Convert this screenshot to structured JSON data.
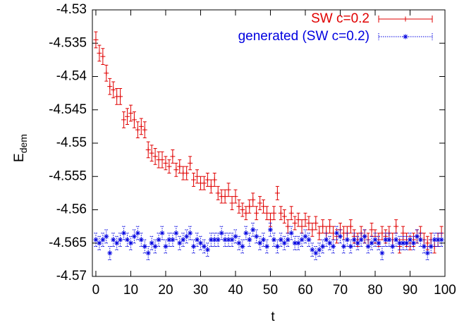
{
  "chart_data": {
    "type": "errorbar_scatter",
    "xlabel": "t",
    "ylabel": "E",
    "ylabel_subscript": "dem",
    "xlim": [
      -1,
      100
    ],
    "ylim": [
      -4.57,
      -4.53
    ],
    "xticks": [
      0,
      10,
      20,
      30,
      40,
      50,
      60,
      70,
      80,
      90,
      100
    ],
    "yticks": [
      -4.57,
      -4.565,
      -4.56,
      -4.555,
      -4.55,
      -4.545,
      -4.54,
      -4.535,
      -4.53
    ],
    "legend": "top-right",
    "x": [
      0,
      1,
      2,
      3,
      4,
      5,
      6,
      7,
      8,
      9,
      10,
      11,
      12,
      13,
      14,
      15,
      16,
      17,
      18,
      19,
      20,
      21,
      22,
      23,
      24,
      25,
      26,
      27,
      28,
      29,
      30,
      31,
      32,
      33,
      34,
      35,
      36,
      37,
      38,
      39,
      40,
      41,
      42,
      43,
      44,
      45,
      46,
      47,
      48,
      49,
      50,
      51,
      52,
      53,
      54,
      55,
      56,
      57,
      58,
      59,
      60,
      61,
      62,
      63,
      64,
      65,
      66,
      67,
      68,
      69,
      70,
      71,
      72,
      73,
      74,
      75,
      76,
      77,
      78,
      79,
      80,
      81,
      82,
      83,
      84,
      85,
      86,
      87,
      88,
      89,
      90,
      91,
      92,
      93,
      94,
      95,
      96,
      97,
      98,
      99
    ],
    "series": [
      {
        "name": "SW c=0.2",
        "color": "#e00000",
        "marker": "plus",
        "dotted": false,
        "values": [
          -4.5345,
          -4.5365,
          -4.537,
          -4.5395,
          -4.5415,
          -4.542,
          -4.543,
          -4.543,
          -4.5465,
          -4.546,
          -4.5455,
          -4.5465,
          -4.548,
          -4.5475,
          -4.548,
          -4.551,
          -4.5515,
          -4.552,
          -4.5525,
          -4.5525,
          -4.553,
          -4.5535,
          -4.552,
          -4.554,
          -4.5535,
          -4.5545,
          -4.5545,
          -4.553,
          -4.5555,
          -4.555,
          -4.556,
          -4.556,
          -4.5555,
          -4.5565,
          -4.5555,
          -4.5575,
          -4.558,
          -4.558,
          -4.557,
          -4.559,
          -4.558,
          -4.5595,
          -4.56,
          -4.5605,
          -4.5595,
          -4.5585,
          -4.5605,
          -4.559,
          -4.5595,
          -4.5605,
          -4.5615,
          -4.5605,
          -4.5575,
          -4.5605,
          -4.561,
          -4.5625,
          -4.5605,
          -4.562,
          -4.5615,
          -4.5625,
          -4.5615,
          -4.562,
          -4.563,
          -4.562,
          -4.5635,
          -4.5625,
          -4.5635,
          -4.5625,
          -4.5635,
          -4.564,
          -4.563,
          -4.5635,
          -4.5635,
          -4.5625,
          -4.564,
          -4.5645,
          -4.5635,
          -4.564,
          -4.5645,
          -4.563,
          -4.564,
          -4.5645,
          -4.5635,
          -4.564,
          -4.5635,
          -4.5645,
          -4.5625,
          -4.5655,
          -4.5635,
          -4.5645,
          -4.565,
          -4.5645,
          -4.564,
          -4.5635,
          -4.5645,
          -4.565,
          -4.5645,
          -4.5655,
          -4.5645,
          -4.5635
        ],
        "errors": [
          0.0012,
          0.0012,
          0.0012,
          0.0012,
          0.0012,
          0.0012,
          0.0012,
          0.0012,
          0.0012,
          0.0012,
          0.0012,
          0.0012,
          0.0012,
          0.0012,
          0.0012,
          0.0012,
          0.0012,
          0.0012,
          0.0012,
          0.0012,
          0.001,
          0.001,
          0.001,
          0.001,
          0.001,
          0.001,
          0.001,
          0.001,
          0.001,
          0.001,
          0.001,
          0.001,
          0.001,
          0.001,
          0.001,
          0.001,
          0.001,
          0.001,
          0.001,
          0.001,
          0.001,
          0.001,
          0.001,
          0.001,
          0.001,
          0.001,
          0.001,
          0.001,
          0.001,
          0.001,
          0.001,
          0.001,
          0.001,
          0.001,
          0.001,
          0.001,
          0.001,
          0.001,
          0.001,
          0.001,
          0.001,
          0.001,
          0.001,
          0.001,
          0.001,
          0.001,
          0.001,
          0.001,
          0.001,
          0.001,
          0.001,
          0.001,
          0.001,
          0.001,
          0.001,
          0.001,
          0.001,
          0.001,
          0.001,
          0.001,
          0.001,
          0.001,
          0.001,
          0.001,
          0.001,
          0.001,
          0.001,
          0.001,
          0.001,
          0.001,
          0.001,
          0.001,
          0.001,
          0.001,
          0.001,
          0.001,
          0.001,
          0.001,
          0.001,
          0.001
        ]
      },
      {
        "name": "generated (SW c=0.2)",
        "color": "#0000e0",
        "marker": "star",
        "dotted": true,
        "values": [
          -4.5645,
          -4.565,
          -4.5645,
          -4.564,
          -4.5665,
          -4.5645,
          -4.565,
          -4.5645,
          -4.5635,
          -4.5645,
          -4.565,
          -4.564,
          -4.5635,
          -4.5645,
          -4.5655,
          -4.5665,
          -4.565,
          -4.5655,
          -4.5645,
          -4.5635,
          -4.5655,
          -4.5645,
          -4.5645,
          -4.5635,
          -4.565,
          -4.5645,
          -4.564,
          -4.5635,
          -4.5655,
          -4.5645,
          -4.565,
          -4.5655,
          -4.566,
          -4.5645,
          -4.5645,
          -4.5645,
          -4.5635,
          -4.5645,
          -4.5645,
          -4.5645,
          -4.564,
          -4.565,
          -4.5655,
          -4.5635,
          -4.5645,
          -4.563,
          -4.564,
          -4.565,
          -4.5645,
          -4.5655,
          -4.563,
          -4.5645,
          -4.5655,
          -4.5645,
          -4.565,
          -4.5645,
          -4.5635,
          -4.565,
          -4.565,
          -4.5645,
          -4.564,
          -4.5645,
          -4.566,
          -4.5665,
          -4.566,
          -4.5655,
          -4.5645,
          -4.565,
          -4.5655,
          -4.5635,
          -4.564,
          -4.5655,
          -4.5645,
          -4.5655,
          -4.5645,
          -4.565,
          -4.5645,
          -4.564,
          -4.5655,
          -4.565,
          -4.5645,
          -4.565,
          -4.5665,
          -4.5645,
          -4.5645,
          -4.5655,
          -4.5645,
          -4.565,
          -4.565,
          -4.565,
          -4.5645,
          -4.565,
          -4.564,
          -4.5645,
          -4.5655,
          -4.5665,
          -4.5655,
          -4.5645,
          -4.5645,
          -4.5645
        ],
        "errors": [
          0.001,
          0.001,
          0.001,
          0.001,
          0.001,
          0.001,
          0.001,
          0.001,
          0.001,
          0.001,
          0.001,
          0.001,
          0.001,
          0.001,
          0.001,
          0.001,
          0.001,
          0.001,
          0.001,
          0.001,
          0.001,
          0.001,
          0.001,
          0.001,
          0.001,
          0.001,
          0.001,
          0.001,
          0.001,
          0.001,
          0.001,
          0.001,
          0.001,
          0.001,
          0.001,
          0.001,
          0.001,
          0.001,
          0.001,
          0.001,
          0.001,
          0.001,
          0.001,
          0.001,
          0.001,
          0.001,
          0.001,
          0.001,
          0.001,
          0.001,
          0.001,
          0.001,
          0.001,
          0.001,
          0.001,
          0.001,
          0.001,
          0.001,
          0.001,
          0.001,
          0.001,
          0.001,
          0.001,
          0.001,
          0.001,
          0.001,
          0.001,
          0.001,
          0.001,
          0.001,
          0.001,
          0.001,
          0.001,
          0.001,
          0.001,
          0.001,
          0.001,
          0.001,
          0.001,
          0.001,
          0.001,
          0.001,
          0.001,
          0.001,
          0.001,
          0.001,
          0.001,
          0.001,
          0.001,
          0.001,
          0.001,
          0.001,
          0.001,
          0.001,
          0.001,
          0.001,
          0.001,
          0.001,
          0.001,
          0.001
        ]
      }
    ]
  }
}
